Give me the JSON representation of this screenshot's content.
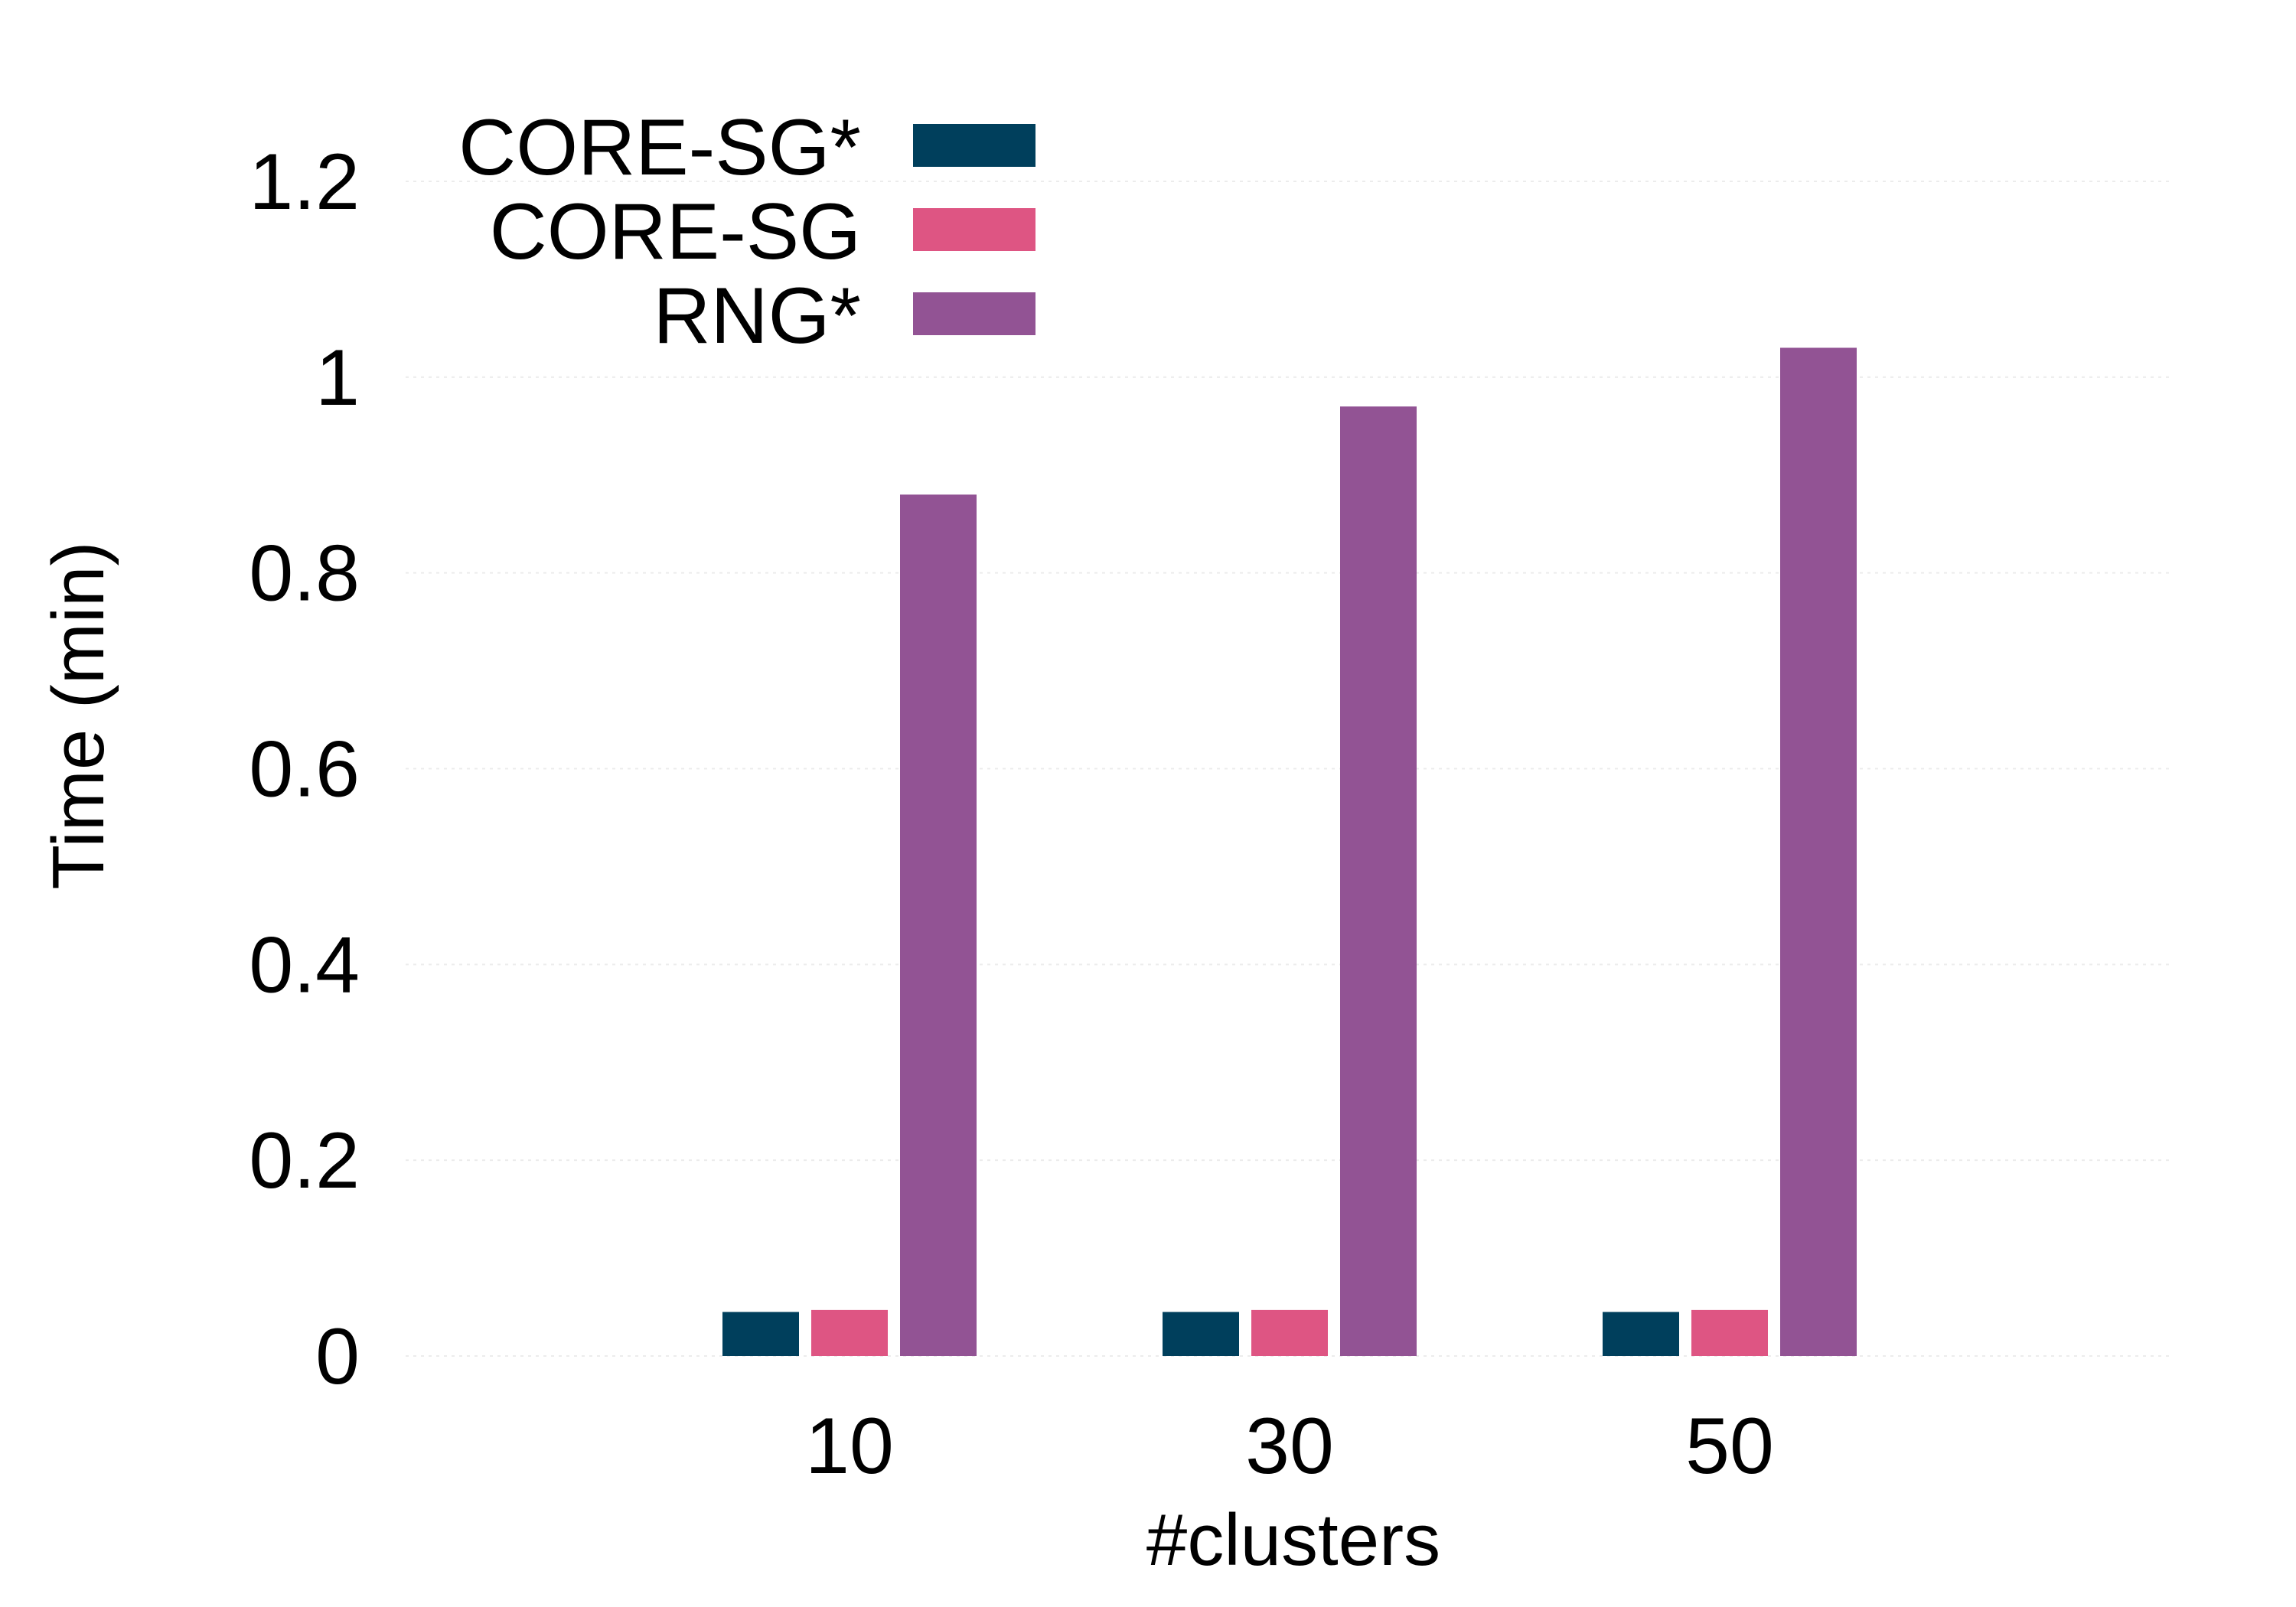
{
  "chart_data": {
    "type": "bar",
    "categories": [
      "10",
      "30",
      "50"
    ],
    "series": [
      {
        "name": "CORE-SG*",
        "color": "#003f5c",
        "values": [
          0.045,
          0.045,
          0.045
        ]
      },
      {
        "name": "CORE-SG",
        "color": "#de5583",
        "values": [
          0.047,
          0.047,
          0.047
        ]
      },
      {
        "name": "RNG*",
        "color": "#925394",
        "values": [
          0.88,
          0.97,
          1.03
        ]
      }
    ],
    "title": "",
    "xlabel": "#clusters",
    "ylabel": "Time (min)",
    "ylim": [
      0,
      1.2
    ],
    "yticks": [
      "0",
      "0.2",
      "0.4",
      "0.6",
      "0.8",
      "1",
      "1.2"
    ],
    "grid": true,
    "legend_position": "top-left"
  }
}
